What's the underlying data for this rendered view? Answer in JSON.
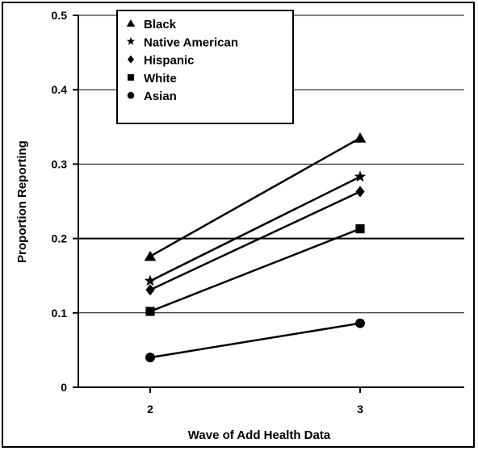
{
  "chart_data": {
    "type": "line",
    "title": "",
    "xlabel": "Wave of Add Health Data",
    "ylabel": "Proportion Reporting",
    "x": [
      2,
      3
    ],
    "x_tick_labels": [
      "2",
      "3"
    ],
    "y_ticks": [
      0,
      0.1,
      0.2,
      0.3,
      0.4,
      0.5
    ],
    "y_tick_labels": [
      "0",
      "0.1",
      "0.2",
      "0.3",
      "0.4",
      "0.5"
    ],
    "ylim": [
      0,
      0.5
    ],
    "grid": "horizontal",
    "legend_position": "top-left",
    "series": [
      {
        "name": "Black",
        "marker": "triangle",
        "values": [
          0.176,
          0.335
        ]
      },
      {
        "name": "Native American",
        "marker": "star",
        "values": [
          0.143,
          0.283
        ]
      },
      {
        "name": "Hispanic",
        "marker": "diamond",
        "values": [
          0.131,
          0.263
        ]
      },
      {
        "name": "White",
        "marker": "square",
        "values": [
          0.102,
          0.213
        ]
      },
      {
        "name": "Asian",
        "marker": "circle",
        "values": [
          0.04,
          0.086
        ]
      }
    ]
  }
}
